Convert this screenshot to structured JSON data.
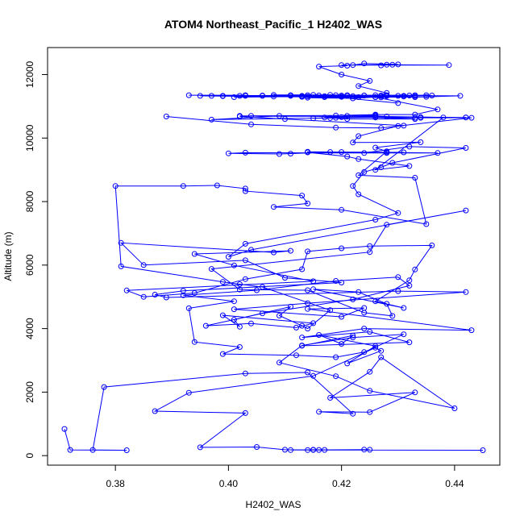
{
  "chart_data": {
    "type": "line",
    "title": "ATOM4 Northeast_Pacific_1 H2402_WAS",
    "xlabel": "H2402_WAS",
    "ylabel": "Altitude (m)",
    "xlim": [
      0.368,
      0.448
    ],
    "ylim": [
      -300,
      12850
    ],
    "x_ticks": [
      0.38,
      0.4,
      0.42,
      0.44
    ],
    "x_tick_labels": [
      "0.38",
      "0.40",
      "0.42",
      "0.44"
    ],
    "y_ticks": [
      0,
      2000,
      4000,
      6000,
      8000,
      10000,
      12000
    ],
    "y_tick_labels": [
      "0",
      "2000",
      "4000",
      "6000",
      "8000",
      "10000",
      "12000"
    ],
    "grid": false,
    "legend": "none",
    "markers": "open-circle",
    "color": "#0000ff",
    "series": [
      {
        "x": [
          0.445,
          0.416,
          0.411,
          0.425,
          0.424,
          0.415,
          0.414,
          0.415,
          0.417,
          0.41,
          0.405,
          0.395,
          0.403,
          0.387,
          0.393,
          0.415,
          0.426,
          0.427,
          0.421,
          0.426,
          0.416,
          0.42,
          0.422,
          0.413,
          0.432,
          0.425,
          0.413,
          0.424,
          0.443,
          0.414,
          0.424,
          0.42,
          0.401,
          0.414,
          0.442,
          0.43,
          0.389,
          0.387,
          0.392,
          0.42,
          0.41,
          0.403,
          0.385,
          0.381,
          0.408,
          0.411,
          0.394,
          0.401,
          0.415,
          0.382,
          0.385,
          0.394,
          0.403,
          0.413,
          0.414,
          0.42,
          0.425,
          0.436,
          0.433,
          0.432,
          0.426,
          0.431,
          0.415,
          0.423,
          0.428,
          0.429,
          0.424,
          0.414,
          0.402,
          0.397,
          0.425,
          0.428,
          0.442,
          0.404,
          0.4,
          0.403,
          0.426,
          0.43,
          0.423,
          0.422,
          0.424,
          0.427,
          0.429,
          0.442,
          0.432,
          0.424,
          0.437,
          0.428,
          0.418,
          0.411,
          0.409,
          0.4,
          0.403,
          0.428,
          0.431,
          0.42,
          0.414,
          0.414,
          0.421,
          0.423,
          0.432,
          0.426,
          0.438,
          0.428,
          0.426,
          0.415,
          0.418,
          0.421,
          0.426
        ],
        "y": [
          170,
          180,
          175,
          185,
          190,
          180,
          175,
          185,
          180,
          185,
          270,
          260,
          1340,
          1400,
          1980,
          2510,
          3400,
          3300,
          2900,
          3450,
          3800,
          3520,
          3780,
          3460,
          3570,
          3900,
          3720,
          4000,
          3950,
          4620,
          4650,
          4370,
          4610,
          4800,
          5150,
          5180,
          4980,
          5070,
          5190,
          5450,
          5600,
          6150,
          6000,
          6700,
          6400,
          6450,
          6350,
          5990,
          5490,
          5200,
          5000,
          5120,
          5560,
          5870,
          6430,
          6530,
          6600,
          6620,
          5860,
          5520,
          4860,
          4650,
          5240,
          5150,
          4780,
          4400,
          4500,
          5210,
          5230,
          5880,
          6410,
          7270,
          7720,
          6480,
          6260,
          6670,
          7430,
          7640,
          8230,
          8490,
          8930,
          9080,
          9220,
          9690,
          9730,
          9530,
          9530,
          9550,
          9560,
          9510,
          9500,
          9520,
          9540,
          9530,
          9550,
          9560,
          9570,
          9550,
          9420,
          9340,
          9120,
          9000,
          10650,
          10680,
          10700,
          10620,
          10630,
          10700,
          10720
        ]
      },
      {
        "x": [
          0.371,
          0.372,
          0.382,
          0.376,
          0.378,
          0.403,
          0.414,
          0.422,
          0.416,
          0.425,
          0.433,
          0.418,
          0.425,
          0.427,
          0.44,
          0.425,
          0.419,
          0.409,
          0.413,
          0.422,
          0.431,
          0.424,
          0.419,
          0.412,
          0.399,
          0.402,
          0.394,
          0.393,
          0.401,
          0.392,
          0.405,
          0.419,
          0.43,
          0.432,
          0.422,
          0.406,
          0.396,
          0.404,
          0.412,
          0.415,
          0.399,
          0.402,
          0.401,
          0.411,
          0.409,
          0.413,
          0.414,
          0.418,
          0.406,
          0.402,
          0.399,
          0.381,
          0.38,
          0.392,
          0.398,
          0.403,
          0.403,
          0.413,
          0.414,
          0.408,
          0.42,
          0.435,
          0.433,
          0.423,
          0.428,
          0.426,
          0.434,
          0.422,
          0.423,
          0.43,
          0.431,
          0.41,
          0.402,
          0.404,
          0.419,
          0.426,
          0.433,
          0.437,
          0.426,
          0.428,
          0.423,
          0.425,
          0.42,
          0.416,
          0.421,
          0.42,
          0.429,
          0.427,
          0.43,
          0.424,
          0.422,
          0.439,
          0.428
        ],
        "y": [
          840,
          180,
          170,
          180,
          2160,
          2590,
          2620,
          1320,
          1380,
          1370,
          1990,
          1820,
          2640,
          3100,
          1490,
          2040,
          2500,
          2930,
          3470,
          3720,
          3820,
          3260,
          3100,
          3160,
          3200,
          3420,
          3580,
          4640,
          4860,
          5050,
          5210,
          5500,
          5620,
          5350,
          4920,
          4480,
          4090,
          4160,
          4030,
          4170,
          4420,
          4060,
          4280,
          4690,
          4410,
          4090,
          4000,
          4580,
          5310,
          5400,
          5470,
          5960,
          8490,
          8490,
          8510,
          8410,
          8330,
          8190,
          7940,
          7830,
          7740,
          7290,
          8750,
          8830,
          9580,
          9700,
          9870,
          9860,
          10060,
          10380,
          10390,
          10600,
          10680,
          10700,
          10710,
          10740,
          10740,
          10900,
          11290,
          11420,
          11640,
          11800,
          12000,
          12250,
          12280,
          12300,
          12310,
          12290,
          12320,
          12350,
          12300,
          12300,
          12310
        ]
      },
      {
        "x": [
          0.43,
          0.416,
          0.406,
          0.393,
          0.403,
          0.397,
          0.399,
          0.402,
          0.403,
          0.42,
          0.433,
          0.417,
          0.423,
          0.428,
          0.413,
          0.401,
          0.417,
          0.428,
          0.436,
          0.426,
          0.414,
          0.422,
          0.43,
          0.431,
          0.427,
          0.413,
          0.399,
          0.395,
          0.408,
          0.414,
          0.42,
          0.433,
          0.435,
          0.441,
          0.427,
          0.421,
          0.406,
          0.411,
          0.413,
          0.418,
          0.424,
          0.433,
          0.426,
          0.415,
          0.408,
          0.411,
          0.421,
          0.427,
          0.431,
          0.432,
          0.421,
          0.414,
          0.419,
          0.424,
          0.435,
          0.428,
          0.422,
          0.42
        ],
        "y": [
          11100,
          11340,
          11340,
          11350,
          11350,
          11330,
          11330,
          11330,
          11330,
          11340,
          11320,
          11290,
          11290,
          11320,
          11310,
          11290,
          11320,
          11340,
          11340,
          11290,
          11270,
          11250,
          11330,
          11310,
          11280,
          11300,
          11320,
          11330,
          11310,
          11310,
          11300,
          11290,
          11300,
          11330,
          11340,
          11350,
          11330,
          11350,
          11330,
          11360,
          11340,
          11350,
          11350,
          11360,
          11360,
          11330,
          11330,
          11320,
          11330,
          11340,
          11340,
          11350,
          11350,
          11340,
          11350,
          11350,
          11320,
          11310
        ]
      },
      {
        "x": [
          0.389,
          0.404,
          0.419,
          0.427,
          0.443,
          0.433,
          0.409,
          0.397,
          0.419,
          0.434,
          0.442,
          0.426,
          0.433,
          0.421,
          0.417,
          0.42,
          0.426,
          0.434,
          0.442,
          0.402
        ],
        "y": [
          10680,
          10430,
          10330,
          10320,
          10640,
          10640,
          10700,
          10580,
          10640,
          10660,
          10650,
          10650,
          10600,
          10600,
          10650,
          10660,
          10660,
          10640,
          10650,
          10700
        ]
      }
    ]
  }
}
